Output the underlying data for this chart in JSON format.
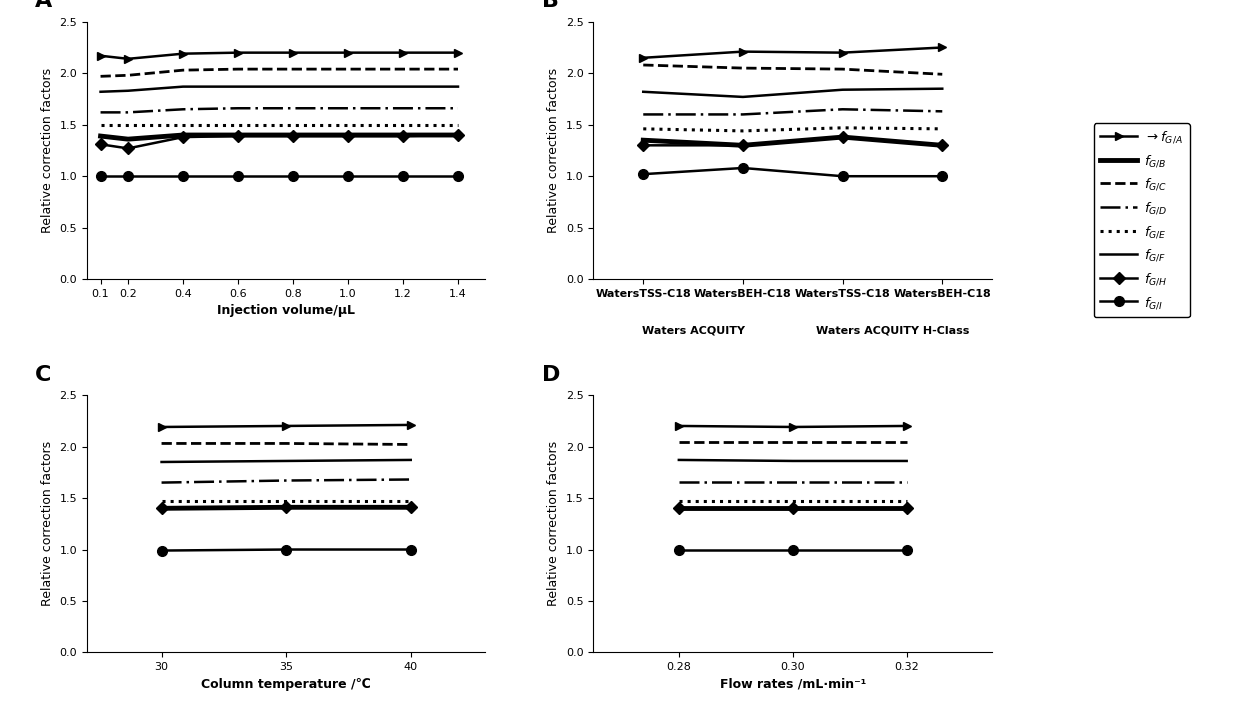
{
  "panel_A": {
    "xlabel": "Injection volume/μL",
    "ylabel": "Relative correction factors",
    "x": [
      0.1,
      0.2,
      0.4,
      0.6,
      0.8,
      1.0,
      1.2,
      1.4
    ],
    "fGA": [
      2.17,
      2.14,
      2.19,
      2.2,
      2.2,
      2.2,
      2.2,
      2.2
    ],
    "fGB": [
      1.39,
      1.36,
      1.4,
      1.4,
      1.4,
      1.4,
      1.4,
      1.4
    ],
    "fGC": [
      1.97,
      1.98,
      2.03,
      2.04,
      2.04,
      2.04,
      2.04,
      2.04
    ],
    "fGD": [
      1.62,
      1.62,
      1.65,
      1.66,
      1.66,
      1.66,
      1.66,
      1.66
    ],
    "fGE": [
      1.5,
      1.5,
      1.5,
      1.5,
      1.5,
      1.5,
      1.5,
      1.5
    ],
    "fGF": [
      1.82,
      1.83,
      1.87,
      1.87,
      1.87,
      1.87,
      1.87,
      1.87
    ],
    "fGH": [
      1.31,
      1.27,
      1.38,
      1.39,
      1.39,
      1.39,
      1.39,
      1.4
    ],
    "fGI": [
      1.0,
      1.0,
      1.0,
      1.0,
      1.0,
      1.0,
      1.0,
      1.0
    ],
    "xlim": [
      0.05,
      1.5
    ],
    "ylim": [
      0,
      2.5
    ],
    "xticks": [
      0.1,
      0.2,
      0.4,
      0.6,
      0.8,
      1.0,
      1.2,
      1.4
    ],
    "yticks": [
      0,
      0.5,
      1.0,
      1.5,
      2.0,
      2.5
    ]
  },
  "panel_B": {
    "ylabel": "Relative correction factors",
    "x": [
      0,
      1,
      2,
      3
    ],
    "xtick_labels": [
      "WatersTSS-C18",
      "WatersBEH-C18",
      "WatersTSS-C18",
      "WatersBEH-C18"
    ],
    "fGA": [
      2.15,
      2.21,
      2.2,
      2.25
    ],
    "fGB": [
      1.35,
      1.3,
      1.38,
      1.3
    ],
    "fGC": [
      2.08,
      2.05,
      2.04,
      1.99
    ],
    "fGD": [
      1.6,
      1.6,
      1.65,
      1.63
    ],
    "fGE": [
      1.46,
      1.44,
      1.47,
      1.46
    ],
    "fGF": [
      1.82,
      1.77,
      1.84,
      1.85
    ],
    "fGH": [
      1.3,
      1.3,
      1.38,
      1.3
    ],
    "fGI": [
      1.02,
      1.08,
      1.0,
      1.0
    ],
    "xlim": [
      -0.5,
      3.5
    ],
    "ylim": [
      0,
      2.5
    ],
    "yticks": [
      0,
      0.5,
      1.0,
      1.5,
      2.0,
      2.5
    ],
    "acquity_label": "Waters ACQUITY",
    "acquity_hclass_label": "Waters ACQUITY H-Class"
  },
  "panel_C": {
    "xlabel": "Column temperature /℃",
    "ylabel": "Relative correction factors",
    "x": [
      30,
      35,
      40
    ],
    "fGA": [
      2.19,
      2.2,
      2.21
    ],
    "fGB": [
      1.4,
      1.41,
      1.41
    ],
    "fGC": [
      2.03,
      2.03,
      2.02
    ],
    "fGD": [
      1.65,
      1.67,
      1.68
    ],
    "fGE": [
      1.47,
      1.47,
      1.47
    ],
    "fGF": [
      1.85,
      1.86,
      1.87
    ],
    "fGH": [
      1.4,
      1.41,
      1.41
    ],
    "fGI": [
      0.99,
      1.0,
      1.0
    ],
    "xlim": [
      27,
      43
    ],
    "ylim": [
      0,
      2.5
    ],
    "xticks": [
      30,
      35,
      40
    ],
    "yticks": [
      0,
      0.5,
      1.0,
      1.5,
      2.0,
      2.5
    ]
  },
  "panel_D": {
    "xlabel": "Flow rates /mL·min⁻¹",
    "ylabel": "Relative correction factors",
    "x": [
      0.28,
      0.3,
      0.32
    ],
    "fGA": [
      2.2,
      2.19,
      2.2
    ],
    "fGB": [
      1.4,
      1.4,
      1.4
    ],
    "fGC": [
      2.04,
      2.04,
      2.04
    ],
    "fGD": [
      1.66,
      1.66,
      1.66
    ],
    "fGE": [
      1.47,
      1.47,
      1.47
    ],
    "fGF": [
      1.87,
      1.86,
      1.86
    ],
    "fGH": [
      1.4,
      1.4,
      1.4
    ],
    "fGI": [
      1.0,
      1.0,
      1.0
    ],
    "xlim": [
      0.265,
      0.335
    ],
    "ylim": [
      0,
      2.5
    ],
    "xticks": [
      0.28,
      0.3,
      0.32
    ],
    "yticks": [
      0,
      0.5,
      1.0,
      1.5,
      2.0,
      2.5
    ]
  },
  "series_keys": [
    "fGA",
    "fGB",
    "fGC",
    "fGD",
    "fGE",
    "fGF",
    "fGH",
    "fGI"
  ],
  "legend_labels": [
    "$\\rightarrow$$f_{G/A}$",
    "$f_{G/B}$",
    "$f_{G/C}$",
    "$f_{G/D}$",
    "$f_{G/E}$",
    "$f_{G/F}$",
    "$f_{G/H}$",
    "$f_{G/I}$"
  ]
}
